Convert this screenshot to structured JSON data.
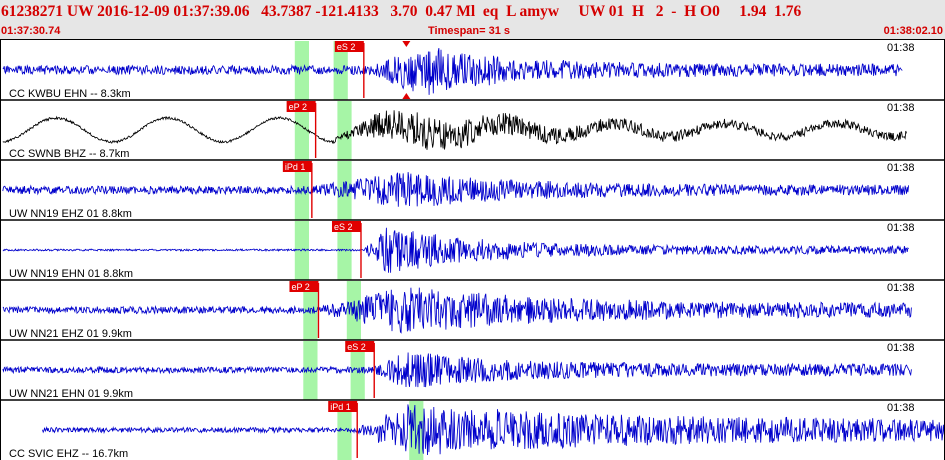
{
  "header": {
    "event_line": "61238271 UW 2016-12-09 01:37:39.06   43.7387 -121.4133   3.70  0.47 Ml  eq  L amyw     UW 01  H   2  -  H O0     1.94  1.76",
    "start_time": "01:37:30.74",
    "timespan": "Timespan=  31 s",
    "end_time": "01:38:02.10"
  },
  "colors": {
    "header_bg": "#e6e6e6",
    "header_text": "#d40000",
    "trace_blue": "#0000cc",
    "trace_black": "#000000",
    "pick_red": "#e00000",
    "window_green": "#a6f5a6"
  },
  "traces": [
    {
      "label": "CC KWBU EHN -- 8.3km",
      "time_mark": "01:38",
      "color": "#0000cc",
      "kind": "hf",
      "seed": 11,
      "amp_pre": 4.5,
      "amp_peak": 27,
      "amp_coda": 6,
      "onset": 0.395,
      "peak": 0.445,
      "decay": 0.09,
      "trace_end": 0.955,
      "pick": {
        "label": "eS 2",
        "pos": 0.385
      },
      "windows": [
        [
          0.312,
          0.327
        ],
        [
          0.353,
          0.368
        ]
      ],
      "marker": 0.43
    },
    {
      "label": "CC SWNB BHZ -- 8.7km",
      "time_mark": "01:38",
      "color": "#000000",
      "kind": "lf",
      "seed": 23,
      "amp_pre": 1.2,
      "amp_peak": 20,
      "amp_coda": 4,
      "onset": 0.355,
      "peak": 0.43,
      "decay": 0.12,
      "trace_end": 0.96,
      "wave_amp": 12,
      "wave_period": 0.118,
      "pick": {
        "label": "eP 2",
        "pos": 0.334
      },
      "windows": [
        [
          0.312,
          0.327
        ],
        [
          0.357,
          0.372
        ]
      ]
    },
    {
      "label": "UW NN19 EHZ 01 8.8km",
      "time_mark": "01:38",
      "color": "#0000cc",
      "kind": "hf",
      "seed": 37,
      "amp_pre": 4,
      "amp_peak": 19,
      "amp_coda": 5,
      "onset": 0.33,
      "peak": 0.43,
      "decay": 0.12,
      "trace_end": 0.962,
      "pick": {
        "label": "iPd 1",
        "pos": 0.33
      },
      "windows": [
        [
          0.312,
          0.327
        ],
        [
          0.357,
          0.372
        ]
      ]
    },
    {
      "label": "UW NN19 EHN 01 8.8km",
      "time_mark": "01:38",
      "color": "#0000cc",
      "kind": "hf",
      "seed": 41,
      "amp_pre": 0.9,
      "amp_peak": 25,
      "amp_coda": 4,
      "onset": 0.385,
      "peak": 0.41,
      "decay": 0.09,
      "trace_end": 0.962,
      "pick": {
        "label": "eS 2",
        "pos": 0.382
      },
      "windows": [
        [
          0.312,
          0.327
        ],
        [
          0.357,
          0.372
        ]
      ]
    },
    {
      "label": "UW NN21 EHZ 01 9.9km",
      "time_mark": "01:38",
      "color": "#0000cc",
      "kind": "hf",
      "seed": 53,
      "amp_pre": 3.5,
      "amp_peak": 25,
      "amp_coda": 7,
      "onset": 0.338,
      "peak": 0.43,
      "decay": 0.14,
      "trace_end": 0.965,
      "pick": {
        "label": "eP 2",
        "pos": 0.337
      },
      "windows": [
        [
          0.321,
          0.336
        ],
        [
          0.367,
          0.382
        ]
      ]
    },
    {
      "label": "UW NN21 EHN 01 9.9km",
      "time_mark": "01:38",
      "color": "#0000cc",
      "kind": "hf",
      "seed": 67,
      "amp_pre": 3,
      "amp_peak": 20,
      "amp_coda": 6,
      "onset": 0.395,
      "peak": 0.43,
      "decay": 0.1,
      "trace_end": 0.965,
      "pick": {
        "label": "eS 2",
        "pos": 0.396
      },
      "windows": [
        [
          0.321,
          0.336
        ],
        [
          0.371,
          0.386
        ]
      ]
    },
    {
      "label": "CC SVIC EHZ -- 16.7km",
      "time_mark": "01:38",
      "color": "#0000cc",
      "kind": "hf",
      "seed": 79,
      "amp_pre": 2.5,
      "amp_peak": 27,
      "amp_coda": 10,
      "onset": 0.378,
      "peak": 0.43,
      "decay": 0.22,
      "trace_end": 1.0,
      "trace_start": 0.045,
      "pick": {
        "label": "iPd 1",
        "pos": 0.378
      },
      "windows": [
        [
          0.357,
          0.372
        ],
        [
          0.433,
          0.448
        ]
      ]
    }
  ]
}
